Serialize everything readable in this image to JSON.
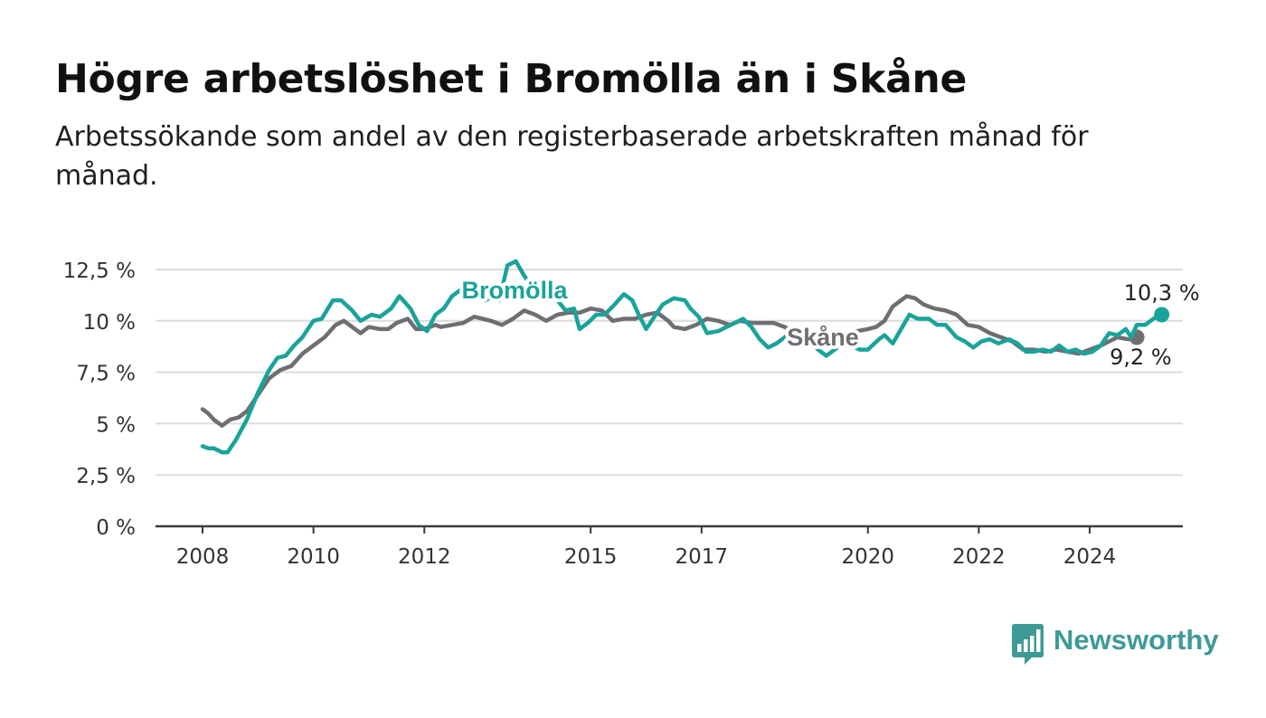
{
  "title": "Högre arbetslöshet i Bromölla än i Skåne",
  "subtitle": "Arbetssökande som andel av den registerbaserade arbetskraften månad för månad.",
  "brand": {
    "name": "Newsworthy",
    "icon": "newsworthy-logo-icon",
    "color": "#3d9a96"
  },
  "chart_data": {
    "type": "line",
    "ylim": [
      0,
      12.5
    ],
    "y_ticks": [
      0,
      2.5,
      5,
      7.5,
      10,
      12.5
    ],
    "y_tick_labels": [
      "0 %",
      "2,5 %",
      "5 %",
      "7,5 %",
      "10 %",
      "12,5 %"
    ],
    "x_ticks": [
      2008,
      2010,
      2012,
      2015,
      2017,
      2020,
      2022,
      2024
    ],
    "x_tick_labels": [
      "2008",
      "2010",
      "2012",
      "2015",
      "2017",
      "2020",
      "2022",
      "2024"
    ],
    "grid": true,
    "series": [
      {
        "name": "Skåne",
        "color": "#6e6e73",
        "end_label": "9,2 %",
        "points": [
          [
            2008.0,
            5.7
          ],
          [
            2008.1,
            5.5
          ],
          [
            2008.2,
            5.2
          ],
          [
            2008.35,
            4.9
          ],
          [
            2008.5,
            5.2
          ],
          [
            2008.65,
            5.3
          ],
          [
            2008.8,
            5.6
          ],
          [
            2009.0,
            6.4
          ],
          [
            2009.2,
            7.2
          ],
          [
            2009.4,
            7.6
          ],
          [
            2009.6,
            7.8
          ],
          [
            2009.8,
            8.4
          ],
          [
            2010.0,
            8.8
          ],
          [
            2010.2,
            9.2
          ],
          [
            2010.4,
            9.8
          ],
          [
            2010.55,
            10.0
          ],
          [
            2010.75,
            9.6
          ],
          [
            2010.85,
            9.4
          ],
          [
            2011.0,
            9.7
          ],
          [
            2011.2,
            9.6
          ],
          [
            2011.35,
            9.6
          ],
          [
            2011.5,
            9.9
          ],
          [
            2011.7,
            10.1
          ],
          [
            2011.85,
            9.6
          ],
          [
            2012.0,
            9.6
          ],
          [
            2012.2,
            9.8
          ],
          [
            2012.3,
            9.7
          ],
          [
            2012.5,
            9.8
          ],
          [
            2012.7,
            9.9
          ],
          [
            2012.9,
            10.2
          ],
          [
            2013.05,
            10.1
          ],
          [
            2013.2,
            10.0
          ],
          [
            2013.4,
            9.8
          ],
          [
            2013.6,
            10.1
          ],
          [
            2013.8,
            10.5
          ],
          [
            2014.0,
            10.3
          ],
          [
            2014.2,
            10.0
          ],
          [
            2014.4,
            10.3
          ],
          [
            2014.6,
            10.4
          ],
          [
            2014.8,
            10.4
          ],
          [
            2015.0,
            10.6
          ],
          [
            2015.2,
            10.5
          ],
          [
            2015.4,
            10.0
          ],
          [
            2015.6,
            10.1
          ],
          [
            2015.8,
            10.1
          ],
          [
            2016.0,
            10.3
          ],
          [
            2016.2,
            10.4
          ],
          [
            2016.4,
            10.0
          ],
          [
            2016.5,
            9.7
          ],
          [
            2016.7,
            9.6
          ],
          [
            2016.9,
            9.8
          ],
          [
            2017.1,
            10.1
          ],
          [
            2017.3,
            10.0
          ],
          [
            2017.5,
            9.8
          ],
          [
            2017.7,
            10.0
          ],
          [
            2017.9,
            9.9
          ],
          [
            2018.1,
            9.9
          ],
          [
            2018.3,
            9.9
          ],
          [
            2018.5,
            9.7
          ],
          [
            2018.65,
            9.5
          ],
          [
            2018.85,
            9.3
          ],
          [
            2019.0,
            9.2
          ],
          [
            2019.2,
            9.1
          ],
          [
            2019.4,
            9.2
          ],
          [
            2019.6,
            9.4
          ],
          [
            2019.8,
            9.5
          ],
          [
            2020.0,
            9.6
          ],
          [
            2020.15,
            9.7
          ],
          [
            2020.3,
            10.0
          ],
          [
            2020.45,
            10.7
          ],
          [
            2020.6,
            11.0
          ],
          [
            2020.7,
            11.2
          ],
          [
            2020.85,
            11.1
          ],
          [
            2021.0,
            10.8
          ],
          [
            2021.2,
            10.6
          ],
          [
            2021.4,
            10.5
          ],
          [
            2021.6,
            10.3
          ],
          [
            2021.8,
            9.8
          ],
          [
            2022.0,
            9.7
          ],
          [
            2022.2,
            9.4
          ],
          [
            2022.4,
            9.2
          ],
          [
            2022.6,
            9.0
          ],
          [
            2022.8,
            8.6
          ],
          [
            2023.0,
            8.6
          ],
          [
            2023.2,
            8.5
          ],
          [
            2023.4,
            8.6
          ],
          [
            2023.6,
            8.5
          ],
          [
            2023.8,
            8.4
          ],
          [
            2024.0,
            8.6
          ],
          [
            2024.2,
            8.8
          ],
          [
            2024.35,
            9.0
          ],
          [
            2024.5,
            9.2
          ],
          [
            2024.7,
            9.1
          ],
          [
            2024.85,
            9.2
          ]
        ]
      },
      {
        "name": "Bromölla",
        "color": "#1aa39a",
        "end_label": "10,3 %",
        "points": [
          [
            2008.0,
            3.9
          ],
          [
            2008.1,
            3.8
          ],
          [
            2008.2,
            3.8
          ],
          [
            2008.35,
            3.6
          ],
          [
            2008.45,
            3.6
          ],
          [
            2008.6,
            4.2
          ],
          [
            2008.8,
            5.2
          ],
          [
            2009.0,
            6.5
          ],
          [
            2009.2,
            7.6
          ],
          [
            2009.35,
            8.2
          ],
          [
            2009.5,
            8.3
          ],
          [
            2009.65,
            8.8
          ],
          [
            2009.8,
            9.2
          ],
          [
            2010.0,
            10.0
          ],
          [
            2010.15,
            10.1
          ],
          [
            2010.35,
            11.0
          ],
          [
            2010.5,
            11.0
          ],
          [
            2010.7,
            10.5
          ],
          [
            2010.85,
            10.0
          ],
          [
            2011.05,
            10.3
          ],
          [
            2011.2,
            10.2
          ],
          [
            2011.4,
            10.6
          ],
          [
            2011.55,
            11.2
          ],
          [
            2011.75,
            10.6
          ],
          [
            2011.9,
            9.8
          ],
          [
            2012.05,
            9.5
          ],
          [
            2012.2,
            10.3
          ],
          [
            2012.35,
            10.6
          ],
          [
            2012.5,
            11.2
          ],
          [
            2012.65,
            11.5
          ],
          [
            2012.8,
            11.3
          ],
          [
            2012.95,
            11.4
          ],
          [
            2013.1,
            11.0
          ],
          [
            2013.25,
            11.2
          ],
          [
            2013.35,
            11.0
          ],
          [
            2013.5,
            12.7
          ],
          [
            2013.65,
            12.9
          ],
          [
            2013.8,
            12.2
          ],
          [
            2013.9,
            11.8
          ],
          [
            2014.1,
            11.6
          ],
          [
            2014.25,
            11.3
          ],
          [
            2014.4,
            11.0
          ],
          [
            2014.55,
            10.5
          ],
          [
            2014.7,
            10.6
          ],
          [
            2014.8,
            9.6
          ],
          [
            2014.95,
            9.9
          ],
          [
            2015.1,
            10.3
          ],
          [
            2015.25,
            10.3
          ],
          [
            2015.4,
            10.7
          ],
          [
            2015.6,
            11.3
          ],
          [
            2015.75,
            11.0
          ],
          [
            2015.85,
            10.4
          ],
          [
            2016.0,
            9.6
          ],
          [
            2016.15,
            10.2
          ],
          [
            2016.3,
            10.8
          ],
          [
            2016.5,
            11.1
          ],
          [
            2016.7,
            11.0
          ],
          [
            2016.8,
            10.6
          ],
          [
            2016.95,
            10.2
          ],
          [
            2017.1,
            9.4
          ],
          [
            2017.3,
            9.5
          ],
          [
            2017.45,
            9.7
          ],
          [
            2017.6,
            9.9
          ],
          [
            2017.75,
            10.1
          ],
          [
            2017.9,
            9.7
          ],
          [
            2018.05,
            9.1
          ],
          [
            2018.2,
            8.7
          ],
          [
            2018.35,
            8.9
          ],
          [
            2018.5,
            9.2
          ],
          [
            2018.65,
            9.6
          ],
          [
            2018.8,
            9.0
          ],
          [
            2018.95,
            9.1
          ],
          [
            2019.1,
            8.6
          ],
          [
            2019.25,
            8.3
          ],
          [
            2019.4,
            8.6
          ],
          [
            2019.55,
            8.9
          ],
          [
            2019.7,
            8.8
          ],
          [
            2019.85,
            8.6
          ],
          [
            2020.0,
            8.6
          ],
          [
            2020.2,
            9.1
          ],
          [
            2020.3,
            9.3
          ],
          [
            2020.45,
            8.9
          ],
          [
            2020.6,
            9.6
          ],
          [
            2020.75,
            10.3
          ],
          [
            2020.9,
            10.1
          ],
          [
            2021.1,
            10.1
          ],
          [
            2021.25,
            9.8
          ],
          [
            2021.4,
            9.8
          ],
          [
            2021.6,
            9.2
          ],
          [
            2021.75,
            9.0
          ],
          [
            2021.9,
            8.7
          ],
          [
            2022.05,
            9.0
          ],
          [
            2022.2,
            9.1
          ],
          [
            2022.35,
            8.9
          ],
          [
            2022.55,
            9.1
          ],
          [
            2022.7,
            8.9
          ],
          [
            2022.85,
            8.5
          ],
          [
            2023.0,
            8.5
          ],
          [
            2023.15,
            8.6
          ],
          [
            2023.3,
            8.5
          ],
          [
            2023.45,
            8.8
          ],
          [
            2023.6,
            8.5
          ],
          [
            2023.75,
            8.6
          ],
          [
            2023.9,
            8.4
          ],
          [
            2024.05,
            8.5
          ],
          [
            2024.2,
            8.8
          ],
          [
            2024.35,
            9.4
          ],
          [
            2024.5,
            9.3
          ],
          [
            2024.65,
            9.6
          ],
          [
            2024.75,
            9.2
          ],
          [
            2024.85,
            9.8
          ],
          [
            2025.0,
            9.8
          ],
          [
            2025.15,
            10.1
          ],
          [
            2025.3,
            10.3
          ]
        ]
      }
    ],
    "series_labels": [
      "Bromölla",
      "Skåne"
    ]
  }
}
